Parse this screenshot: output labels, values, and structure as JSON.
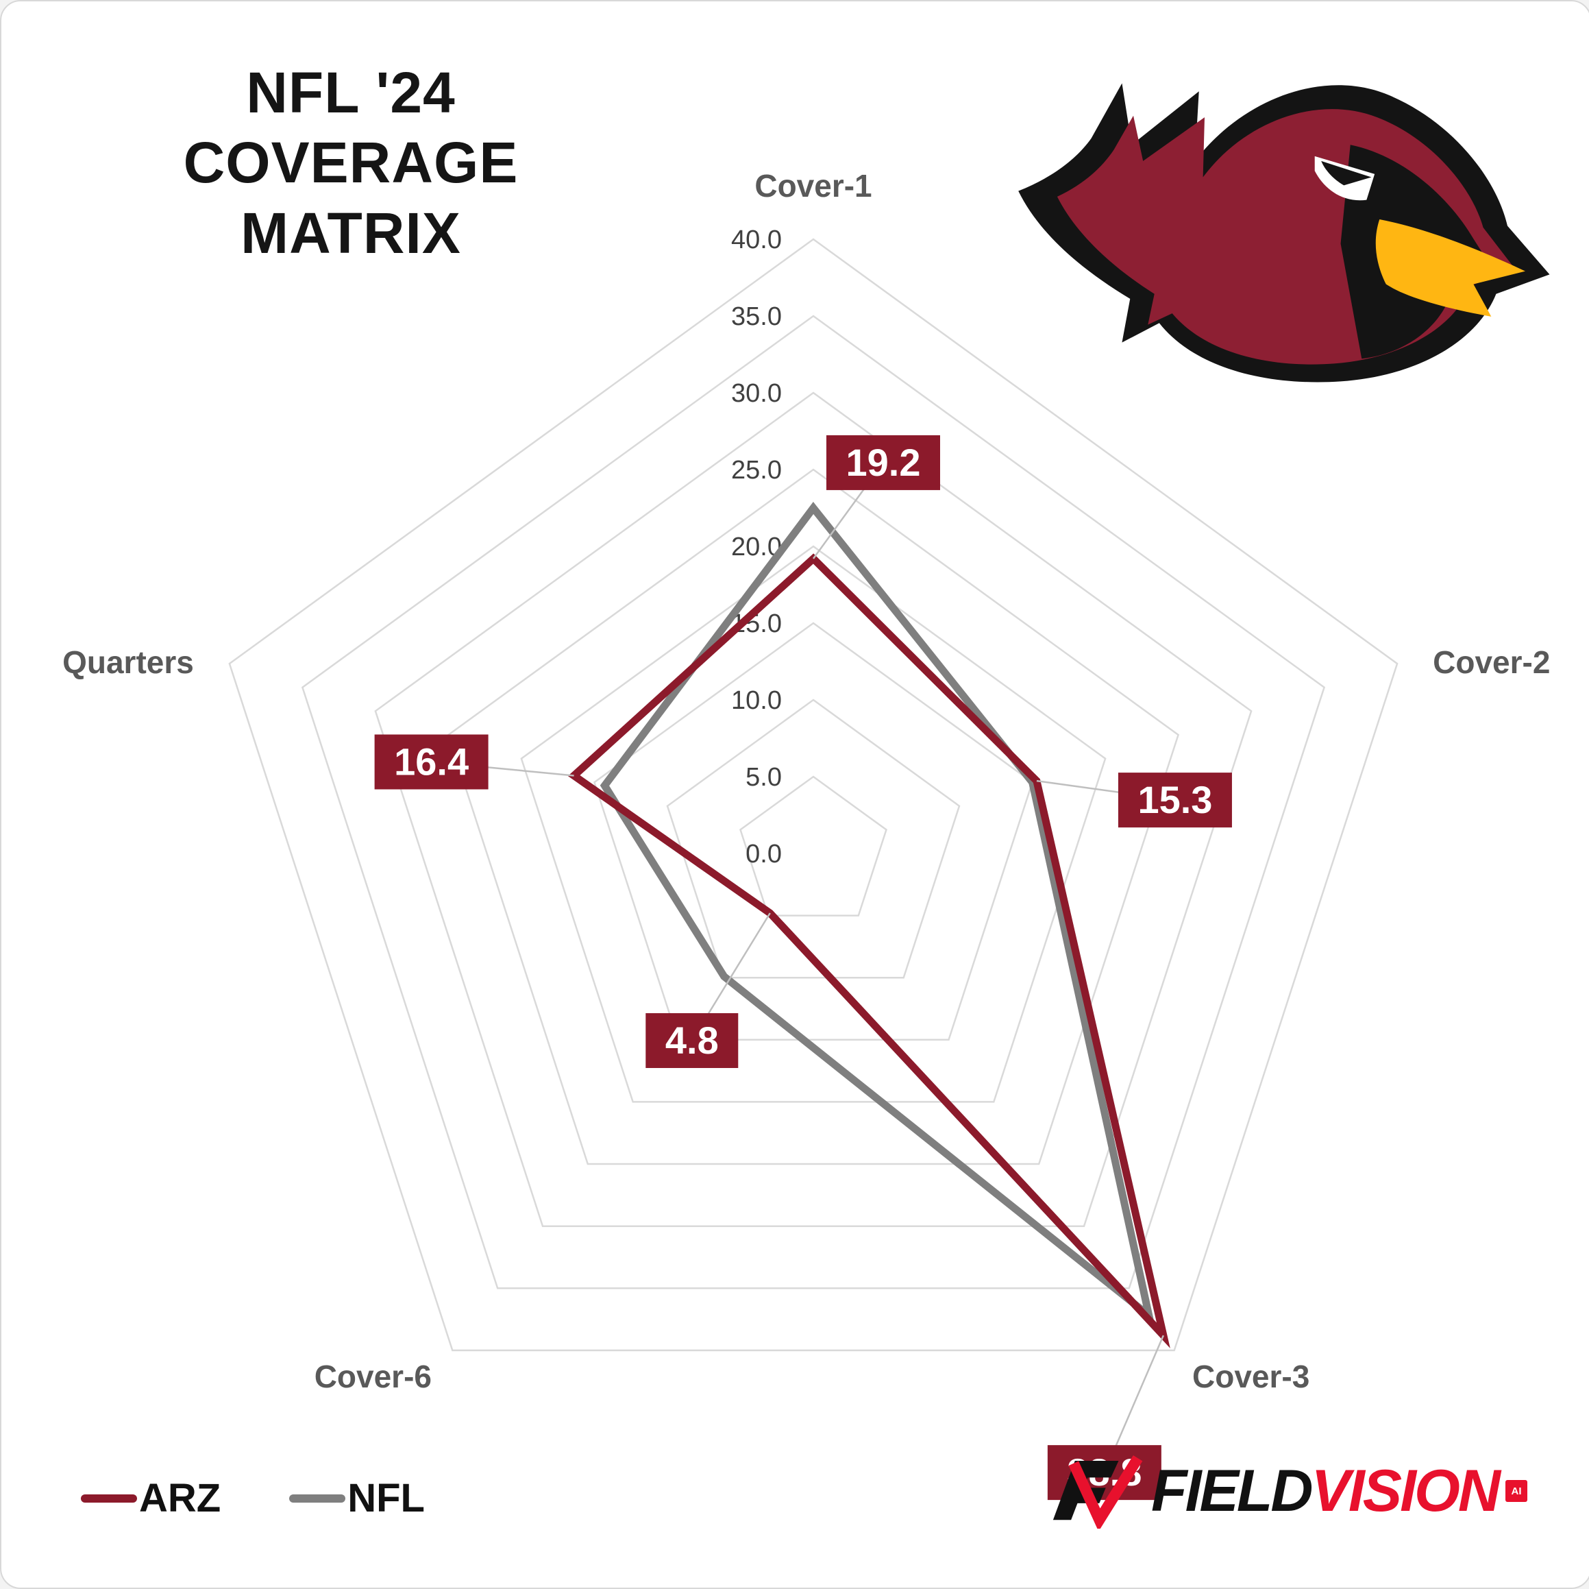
{
  "header": {
    "title_line1": "NFL '24",
    "title_line2": "COVERAGE MATRIX"
  },
  "logos": {
    "team": "arizona-cardinals",
    "brand_field": "FIELD",
    "brand_vision": "VISION",
    "brand_badge": "AI"
  },
  "legend": {
    "items": [
      {
        "label": "ARZ",
        "color": "#8C1A2B"
      },
      {
        "label": "NFL",
        "color": "#7F7F7F"
      }
    ]
  },
  "chart_data": {
    "type": "radar",
    "title": "NFL '24 COVERAGE MATRIX",
    "categories": [
      "Cover-1",
      "Cover-2",
      "Cover-3",
      "Cover-6",
      "Quarters"
    ],
    "axis_max": 40,
    "axis_min": 0,
    "tick_step": 5,
    "tick_labels": [
      "0.0",
      "5.0",
      "10.0",
      "15.0",
      "20.0",
      "25.0",
      "30.0",
      "35.0",
      "40.0"
    ],
    "grid_color": "#D9D9D9",
    "grid": "on",
    "legend_position": "bottom-left",
    "series": [
      {
        "name": "ARZ",
        "color": "#8C1A2B",
        "values": [
          19.2,
          15.3,
          38.8,
          4.8,
          16.4
        ],
        "data_labels": [
          "19.2",
          "15.3",
          "38.8",
          "4.8",
          "16.4"
        ],
        "label_bg": "#8C1A2B",
        "label_text_color": "#FFFFFF"
      },
      {
        "name": "NFL",
        "color": "#7F7F7F",
        "values": [
          22.5,
          15.0,
          37.2,
          9.9,
          14.3
        ]
      }
    ]
  }
}
